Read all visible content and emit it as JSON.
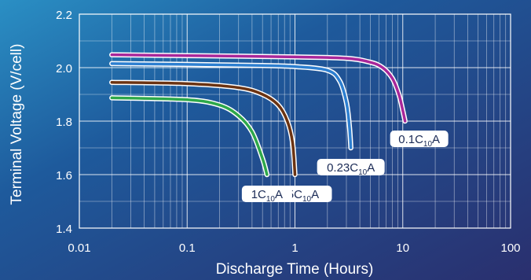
{
  "chart_data": {
    "type": "line",
    "title": "",
    "xlabel": "Discharge Time (Hours)",
    "ylabel": "Terminal Voltage (V/cell)",
    "x_scale": "log",
    "xlim": [
      0.01,
      100
    ],
    "ylim": [
      1.4,
      2.2
    ],
    "x_ticks": [
      0.01,
      0.1,
      1,
      10,
      100
    ],
    "x_tick_labels": [
      "0.01",
      "0.1",
      "1",
      "10",
      "100"
    ],
    "y_ticks": [
      1.4,
      1.6,
      1.8,
      2.0,
      2.2
    ],
    "y_tick_labels": [
      "1.4",
      "1.6",
      "1.8",
      "2.0",
      "2.2"
    ],
    "grid": true,
    "series": [
      {
        "label_main": "0.1C",
        "label_sub": "10",
        "label_unit": "A",
        "color": "#a8279a",
        "points": [
          [
            0.02,
            2.048
          ],
          [
            0.1,
            2.045
          ],
          [
            1,
            2.04
          ],
          [
            3,
            2.035
          ],
          [
            5,
            2.02
          ],
          [
            6.5,
            2.0
          ],
          [
            8,
            1.96
          ],
          [
            9.2,
            1.9
          ],
          [
            10,
            1.84
          ],
          [
            10.5,
            1.8
          ]
        ]
      },
      {
        "label_main": "0.23C",
        "label_sub": "10",
        "label_unit": "A",
        "color": "#2d7fd0",
        "points": [
          [
            0.02,
            2.015
          ],
          [
            0.1,
            2.012
          ],
          [
            0.5,
            2.008
          ],
          [
            1,
            2.004
          ],
          [
            2,
            1.99
          ],
          [
            2.6,
            1.95
          ],
          [
            3.0,
            1.87
          ],
          [
            3.2,
            1.78
          ],
          [
            3.3,
            1.7
          ]
        ]
      },
      {
        "label_main": "0.65C",
        "label_sub": "10",
        "label_unit": "A",
        "color": "#6b3312",
        "points": [
          [
            0.02,
            1.945
          ],
          [
            0.1,
            1.94
          ],
          [
            0.3,
            1.925
          ],
          [
            0.5,
            1.9
          ],
          [
            0.7,
            1.86
          ],
          [
            0.85,
            1.8
          ],
          [
            0.95,
            1.72
          ],
          [
            1.0,
            1.6
          ]
        ]
      },
      {
        "label_main": "1C",
        "label_sub": "10",
        "label_unit": "A",
        "color": "#2ea84a",
        "points": [
          [
            0.02,
            1.887
          ],
          [
            0.1,
            1.88
          ],
          [
            0.2,
            1.86
          ],
          [
            0.3,
            1.82
          ],
          [
            0.4,
            1.76
          ],
          [
            0.5,
            1.66
          ],
          [
            0.55,
            1.6
          ]
        ]
      }
    ]
  }
}
